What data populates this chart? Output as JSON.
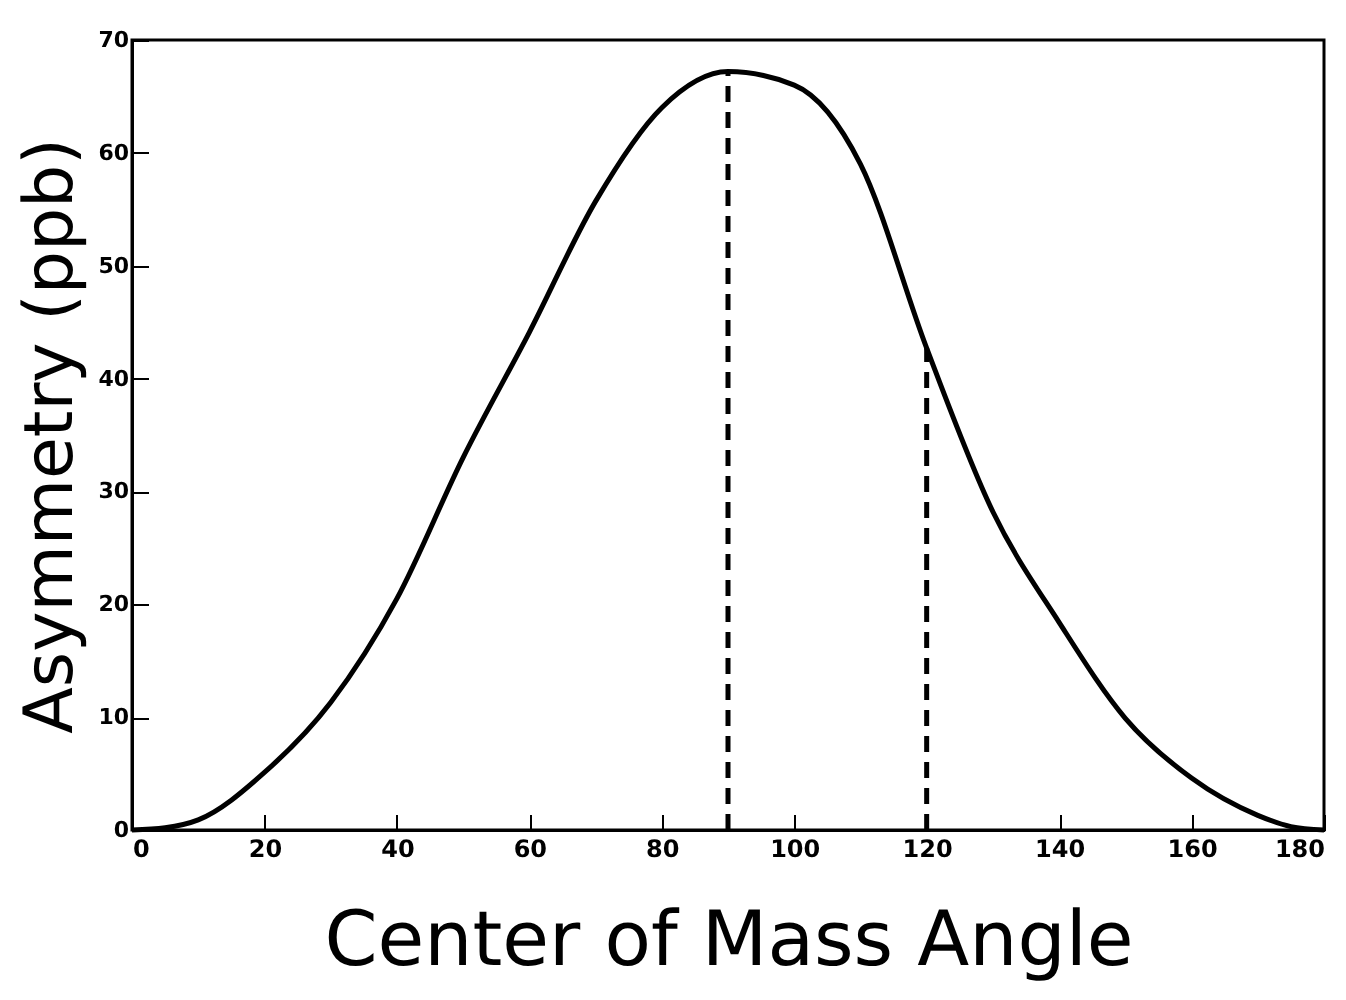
{
  "chart_data": {
    "type": "line",
    "xlabel": "Center of Mass Angle",
    "ylabel": "Asymmetry (ppb)",
    "x": [
      0,
      5,
      10,
      20,
      30,
      40,
      50,
      60,
      70,
      80,
      90,
      100,
      110,
      120,
      130,
      140,
      150,
      160,
      170,
      175,
      180
    ],
    "series": [
      {
        "color": "#000000",
        "values": [
          0,
          0.2,
          0.9,
          5.1,
          11.3,
          20.5,
          33,
          44.1,
          55.7,
          64,
          67.2,
          66,
          59,
          42.7,
          28.2,
          18.4,
          9.9,
          4.6,
          1.3,
          0.3,
          0
        ]
      }
    ],
    "xlim": [
      0,
      180
    ],
    "xticks": [
      0,
      20,
      40,
      60,
      80,
      100,
      120,
      140,
      160,
      180
    ],
    "ylim": [
      0,
      70
    ],
    "yticks": [
      0,
      10,
      20,
      30,
      40,
      50,
      60,
      70
    ],
    "ref_lines": [
      {
        "axis": "x",
        "value": 90,
        "line_style": "dashed"
      },
      {
        "axis": "x",
        "value": 120,
        "line_style": "dashed"
      }
    ],
    "grid": false,
    "marker": "none",
    "line_style": "solid"
  }
}
